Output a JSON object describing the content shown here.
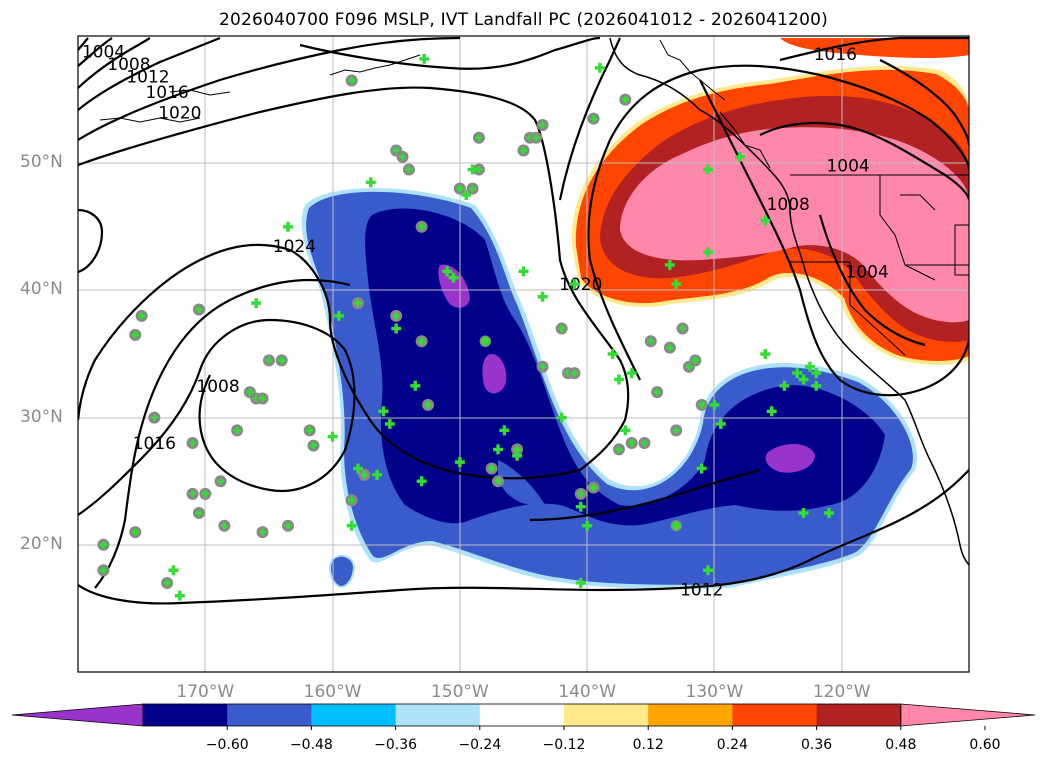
{
  "title": "2026040700 F096 MSLP, IVT Landfall PC (2026041012 - 2026041200)",
  "lat_labels": [
    {
      "text": "50°N",
      "value": 50
    },
    {
      "text": "40°N",
      "value": 40
    },
    {
      "text": "30°N",
      "value": 30
    },
    {
      "text": "20°N",
      "value": 20
    }
  ],
  "lon_labels": [
    {
      "text": "170°W",
      "value": -170
    },
    {
      "text": "160°W",
      "value": -160
    },
    {
      "text": "150°W",
      "value": -150
    },
    {
      "text": "140°W",
      "value": -140
    },
    {
      "text": "130°W",
      "value": -130
    },
    {
      "text": "120°W",
      "value": -120
    }
  ],
  "map_extent": {
    "lon_min": -180,
    "lon_max": -110,
    "lat_min": 10,
    "lat_max": 60
  },
  "colorbar": {
    "ticks": [
      "−0.60",
      "−0.48",
      "−0.36",
      "−0.24",
      "−0.12",
      "0.12",
      "0.24",
      "0.36",
      "0.48",
      "0.60"
    ],
    "colors": [
      "#9933cc",
      "#00008b",
      "#3a5bcc",
      "#00bfff",
      "#aee2fa",
      "#ffffff",
      "#ffe98a",
      "#ffa500",
      "#ff4500",
      "#b22222",
      "#ff88aa"
    ]
  },
  "isobar_labels": [
    {
      "text": "1004",
      "lon": -178.0,
      "lat": 58.8
    },
    {
      "text": "1008",
      "lon": -176.0,
      "lat": 57.8
    },
    {
      "text": "1012",
      "lon": -174.5,
      "lat": 56.8
    },
    {
      "text": "1016",
      "lon": -173.0,
      "lat": 55.6
    },
    {
      "text": "1020",
      "lon": -172.0,
      "lat": 54.0
    },
    {
      "text": "1024",
      "lon": -163.0,
      "lat": 43.5
    },
    {
      "text": "1020",
      "lon": -140.5,
      "lat": 40.5
    },
    {
      "text": "1016",
      "lon": -120.5,
      "lat": 58.6
    },
    {
      "text": "1004",
      "lon": -119.5,
      "lat": 49.8
    },
    {
      "text": "1008",
      "lon": -124.2,
      "lat": 46.8
    },
    {
      "text": "1004",
      "lon": -118.0,
      "lat": 41.5
    },
    {
      "text": "1008",
      "lon": -169.0,
      "lat": 32.5
    },
    {
      "text": "1016",
      "lon": -174.0,
      "lat": 28.0
    },
    {
      "text": "1012",
      "lon": -131.0,
      "lat": 16.5
    }
  ],
  "markers": {
    "circles": [
      [
        -178,
        20
      ],
      [
        -178,
        18
      ],
      [
        -175.5,
        36.5
      ],
      [
        -175,
        38
      ],
      [
        -174,
        30
      ],
      [
        -175.5,
        21
      ],
      [
        -173,
        17
      ],
      [
        -171,
        28
      ],
      [
        -171,
        24
      ],
      [
        -170.5,
        22.5
      ],
      [
        -170,
        24
      ],
      [
        -168.8,
        25
      ],
      [
        -168.5,
        21.5
      ],
      [
        -170.5,
        38.5
      ],
      [
        -167.5,
        29
      ],
      [
        -166.5,
        32
      ],
      [
        -166,
        31.5
      ],
      [
        -165.5,
        31.5
      ],
      [
        -165,
        34.5
      ],
      [
        -164,
        34.5
      ],
      [
        -165.5,
        21
      ],
      [
        -163.5,
        21.5
      ],
      [
        -161.8,
        29
      ],
      [
        -161.5,
        27.8
      ],
      [
        -158.5,
        56.5
      ],
      [
        -158.5,
        23.5
      ],
      [
        -158,
        39
      ],
      [
        -157.5,
        25.5
      ],
      [
        -155,
        51
      ],
      [
        -154.5,
        50.5
      ],
      [
        -154,
        49.5
      ],
      [
        -153,
        45
      ],
      [
        -153,
        36
      ],
      [
        -152.5,
        31
      ],
      [
        -150,
        48
      ],
      [
        -149,
        48
      ],
      [
        -148.5,
        52
      ],
      [
        -148.5,
        49.5
      ],
      [
        -147,
        25
      ],
      [
        -147.5,
        26
      ],
      [
        -145.5,
        27.5
      ],
      [
        -145,
        51
      ],
      [
        -144.5,
        52
      ],
      [
        -144,
        52
      ],
      [
        -143.5,
        53
      ],
      [
        -143.5,
        34
      ],
      [
        -142,
        37
      ],
      [
        -141.5,
        33.5
      ],
      [
        -141,
        33.5
      ],
      [
        -140.5,
        24
      ],
      [
        -139.5,
        24.5
      ],
      [
        -139.5,
        53.5
      ],
      [
        -137.5,
        27.5
      ],
      [
        -136.5,
        28
      ],
      [
        -135.5,
        28
      ],
      [
        -135,
        36
      ],
      [
        -134.5,
        32
      ],
      [
        -133.5,
        35.5
      ],
      [
        -133,
        29
      ],
      [
        -132.5,
        37
      ],
      [
        -132,
        34
      ],
      [
        -131.5,
        34.5
      ],
      [
        -131,
        31
      ],
      [
        -137,
        55
      ],
      [
        -155,
        38
      ]
    ],
    "crosses": [
      [
        -172.5,
        18
      ],
      [
        -172,
        16
      ],
      [
        -166,
        39
      ],
      [
        -163.5,
        45
      ],
      [
        -160,
        28.5
      ],
      [
        -159.5,
        38
      ],
      [
        -158.5,
        21.5
      ],
      [
        -158,
        26
      ],
      [
        -157,
        48.5
      ],
      [
        -156.5,
        25.5
      ],
      [
        -156,
        30.5
      ],
      [
        -155.5,
        29.5
      ],
      [
        -155,
        37
      ],
      [
        -153.5,
        32.5
      ],
      [
        -153,
        25
      ],
      [
        -152.8,
        58.2
      ],
      [
        -151,
        41.5
      ],
      [
        -150.5,
        41
      ],
      [
        -150,
        26.5
      ],
      [
        -149.5,
        47.5
      ],
      [
        -149,
        49.5
      ],
      [
        -147,
        27.5
      ],
      [
        -146.5,
        29
      ],
      [
        -145.5,
        27
      ],
      [
        -145,
        41.5
      ],
      [
        -143.5,
        39.5
      ],
      [
        -142,
        30
      ],
      [
        -140.5,
        23
      ],
      [
        -140,
        21.5
      ],
      [
        -140.5,
        17
      ],
      [
        -139,
        57.5
      ],
      [
        -138,
        35
      ],
      [
        -137.5,
        33
      ],
      [
        -137,
        29
      ],
      [
        -136.5,
        33.5
      ],
      [
        -133.5,
        42
      ],
      [
        -133,
        40.5
      ],
      [
        -131,
        26
      ],
      [
        -130.5,
        49.5
      ],
      [
        -130.5,
        43
      ],
      [
        -130.5,
        18
      ],
      [
        -129.5,
        29.5
      ],
      [
        -128,
        50.5
      ],
      [
        -126,
        45.5
      ],
      [
        -126,
        35
      ],
      [
        -125.5,
        30.5
      ],
      [
        -124.5,
        32.5
      ],
      [
        -123.5,
        33.5
      ],
      [
        -123,
        33
      ],
      [
        -122.5,
        34
      ],
      [
        -122,
        33.5
      ],
      [
        -122,
        32.5
      ],
      [
        -123,
        22.5
      ],
      [
        -121,
        22.5
      ],
      [
        -141,
        40.5
      ],
      [
        -130,
        31
      ]
    ],
    "green_dots": [
      [
        -148,
        36
      ],
      [
        -133,
        21.5
      ]
    ]
  }
}
